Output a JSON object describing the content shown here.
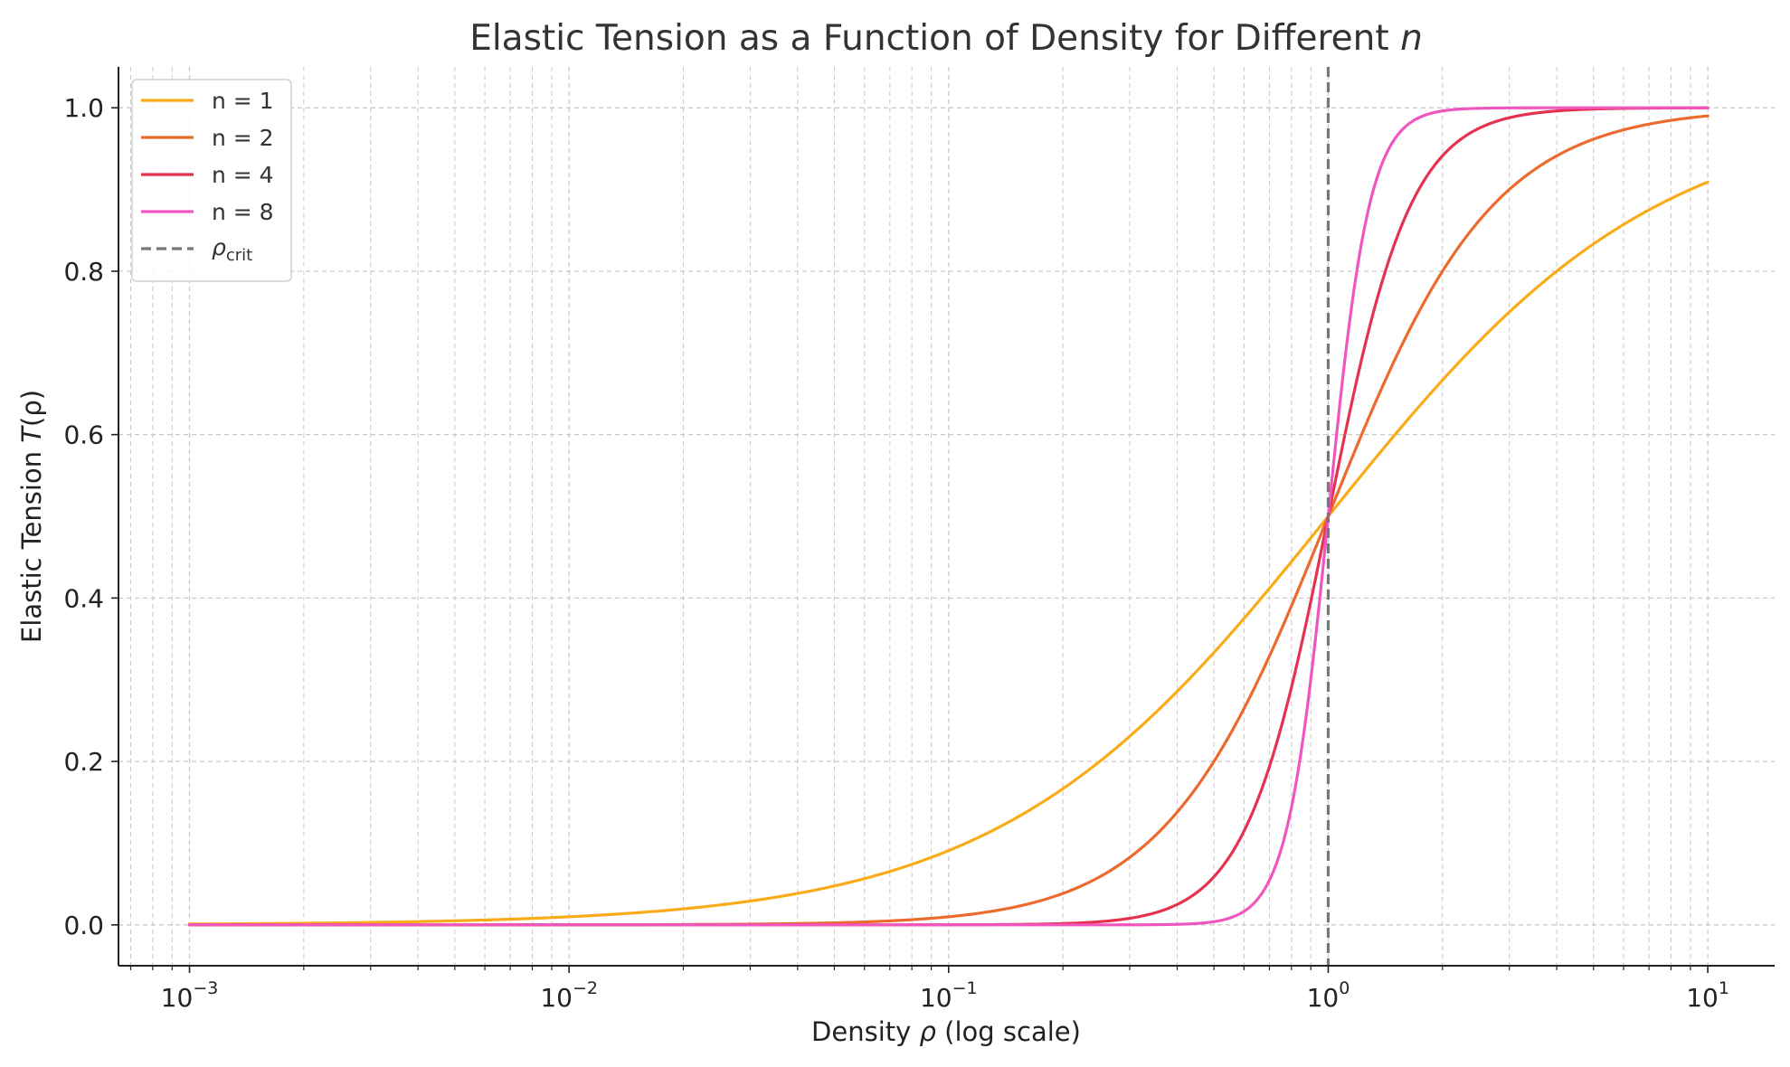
{
  "chart_data": {
    "type": "line",
    "title": {
      "text": "Elastic Tension as a Function of Density for Different ",
      "italic": "n"
    },
    "xlabel": {
      "pre": "Density ",
      "italic": "ρ",
      "post": " (log scale)"
    },
    "ylabel": {
      "pre": "Elastic Tension ",
      "italic": "T",
      "post": "(ρ)"
    },
    "xscale": "log",
    "xlim": [
      0.00065,
      15
    ],
    "ylim": [
      -0.05,
      1.05
    ],
    "x_ticks": [
      {
        "value": 0.001,
        "base": "10",
        "exp": "−3"
      },
      {
        "value": 0.01,
        "base": "10",
        "exp": "−2"
      },
      {
        "value": 0.1,
        "base": "10",
        "exp": "−1"
      },
      {
        "value": 1,
        "base": "10",
        "exp": "0"
      },
      {
        "value": 10,
        "base": "10",
        "exp": "1"
      }
    ],
    "y_ticks": [
      "0.0",
      "0.2",
      "0.4",
      "0.6",
      "0.8",
      "1.0"
    ],
    "grid": true,
    "legend_position": "top-left",
    "x_range": [
      0.001,
      10
    ],
    "series": [
      {
        "name": "n = 1",
        "n": 1,
        "color": "#f9ab18"
      },
      {
        "name": "n = 2",
        "n": 2,
        "color": "#ec6a2c"
      },
      {
        "name": "n = 4",
        "n": 4,
        "color": "#e5334f"
      },
      {
        "name": "n = 8",
        "n": 8,
        "color": "#f056bf"
      }
    ],
    "reference_line": {
      "x": 1,
      "label_base": "ρ",
      "label_sub": "crit",
      "color": "#777777"
    },
    "annotations": []
  }
}
